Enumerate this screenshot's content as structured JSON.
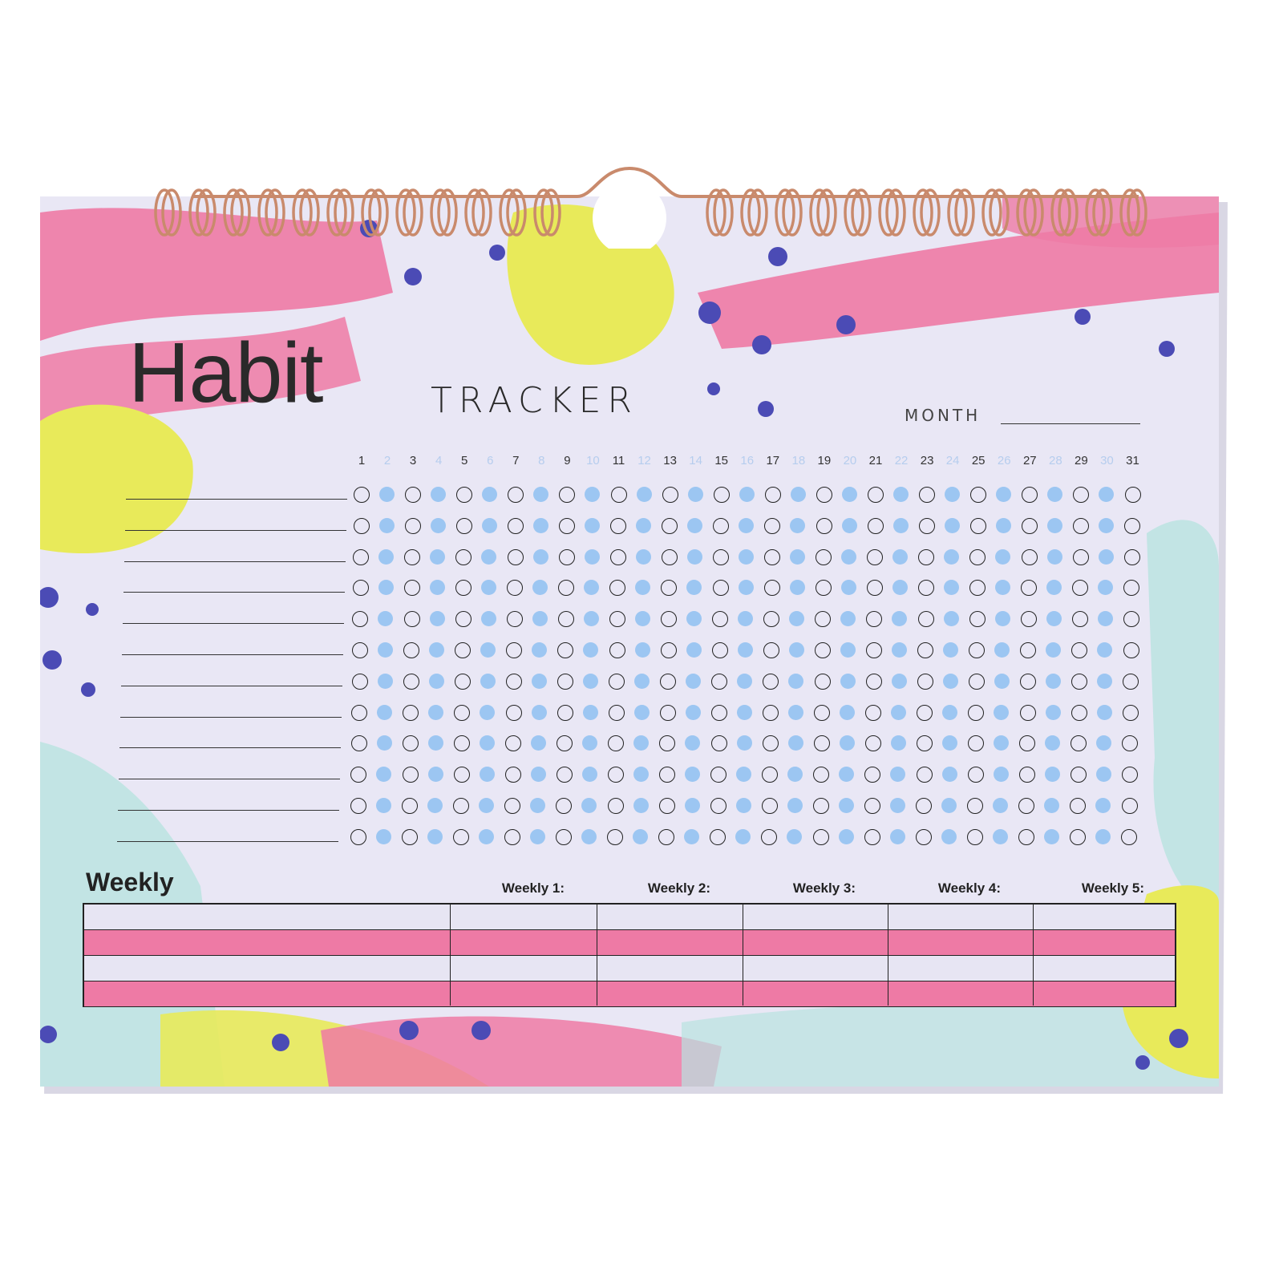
{
  "header": {
    "title": "Habit",
    "subtitle": "TRACKER",
    "month_label": "MONTH"
  },
  "days": [
    "1",
    "2",
    "3",
    "4",
    "5",
    "6",
    "7",
    "8",
    "9",
    "10",
    "11",
    "12",
    "13",
    "14",
    "15",
    "16",
    "17",
    "18",
    "19",
    "20",
    "21",
    "22",
    "23",
    "24",
    "25",
    "26",
    "27",
    "28",
    "29",
    "30",
    "31"
  ],
  "weekly": {
    "title": "Weekly",
    "columns": [
      "Weekly 1:",
      "Weekly 2:",
      "Weekly 3:",
      "Weekly 4:",
      "Weekly 5:"
    ]
  },
  "colors": {
    "paper": "#e9e7f5",
    "pink": "#ee7aa5",
    "yellow": "#e8ea5a",
    "mint": "#b8e3e0",
    "indigo": "#4b4bb5",
    "dot_blue": "#9cc6f2",
    "spiral": "#c98a6c"
  }
}
